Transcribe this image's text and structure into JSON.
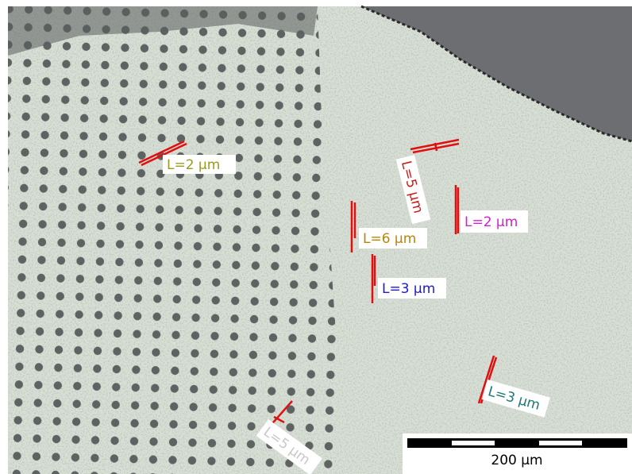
{
  "annotations": [
    {
      "label": "L=2 µm",
      "color": "#9a9a1e"
    },
    {
      "label": "L=5 µm",
      "color": "#d01818"
    },
    {
      "label": "L=2 µm",
      "color": "#d020d0"
    },
    {
      "label": "L=6 µm",
      "color": "#b8860b"
    },
    {
      "label": "L=3 µm",
      "color": "#1a1ad0"
    },
    {
      "label": "L=3 µm",
      "color": "#1a7878"
    },
    {
      "label": "L=5 µm",
      "color": "#c8c8c8"
    }
  ],
  "scale_bar": {
    "label": "200 µm"
  }
}
